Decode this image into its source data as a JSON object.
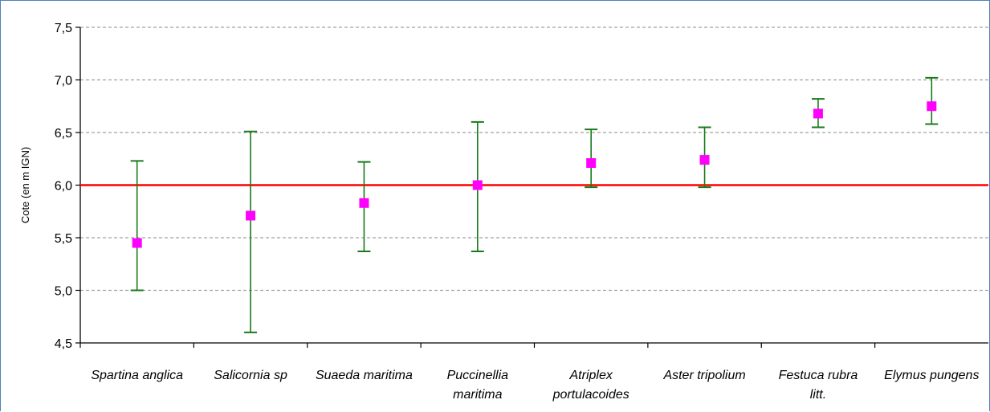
{
  "chart_data": {
    "type": "scatter",
    "ylabel": "Cote (en m IGN)",
    "xlabel": "",
    "ylim": [
      4.5,
      7.5
    ],
    "yticks": [
      "4,5",
      "5,0",
      "5,5",
      "6,0",
      "6,5",
      "7,0",
      "7,5"
    ],
    "grid": "horizontal-dashed",
    "reference_line": {
      "y": 6.0,
      "color": "#ff0000"
    },
    "categories": [
      [
        "Spartina anglica"
      ],
      [
        "Salicornia sp"
      ],
      [
        "Suaeda maritima"
      ],
      [
        "Puccinellia",
        "maritima"
      ],
      [
        "Atriplex",
        "portulacoides"
      ],
      [
        "Aster tripolium"
      ],
      [
        "Festuca rubra",
        "litt."
      ],
      [
        "Elymus pungens"
      ]
    ],
    "values": [
      5.45,
      5.71,
      5.83,
      6.0,
      6.21,
      6.24,
      6.68,
      6.75
    ],
    "error_low": [
      5.0,
      4.6,
      5.37,
      5.37,
      5.98,
      5.98,
      6.55,
      6.58
    ],
    "error_high": [
      6.23,
      6.51,
      6.22,
      6.6,
      6.53,
      6.55,
      6.82,
      7.02
    ],
    "colors": {
      "point": "#ff00ff",
      "error_bar": "#1a7a1a",
      "grid": "#a0a0a0",
      "axis": "#000000"
    }
  }
}
